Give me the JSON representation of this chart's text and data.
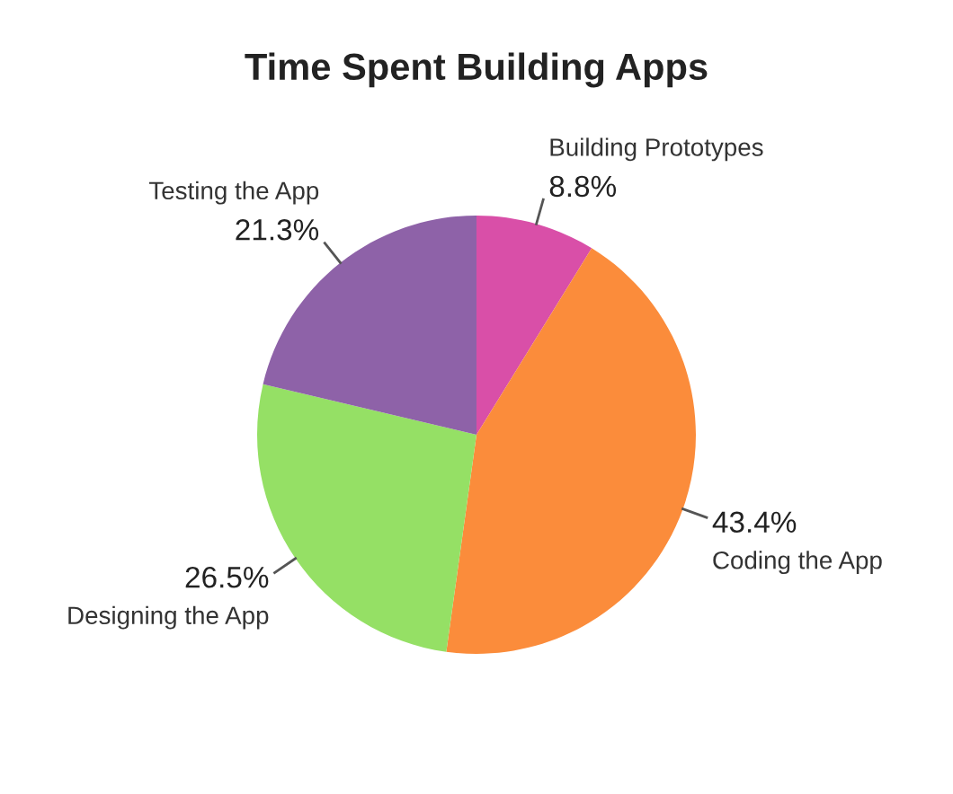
{
  "chart_data": {
    "type": "pie",
    "title": "Time Spent Building Apps",
    "categories": [
      "Building Prototypes",
      "Coding the App",
      "Designing the App",
      "Testing the App"
    ],
    "values": [
      8.8,
      43.4,
      26.5,
      21.3
    ],
    "value_labels": [
      "8.8%",
      "43.4%",
      "26.5%",
      "21.3%"
    ],
    "colors": [
      "#d94fa8",
      "#fb8c3b",
      "#95e065",
      "#8e62a8"
    ]
  }
}
